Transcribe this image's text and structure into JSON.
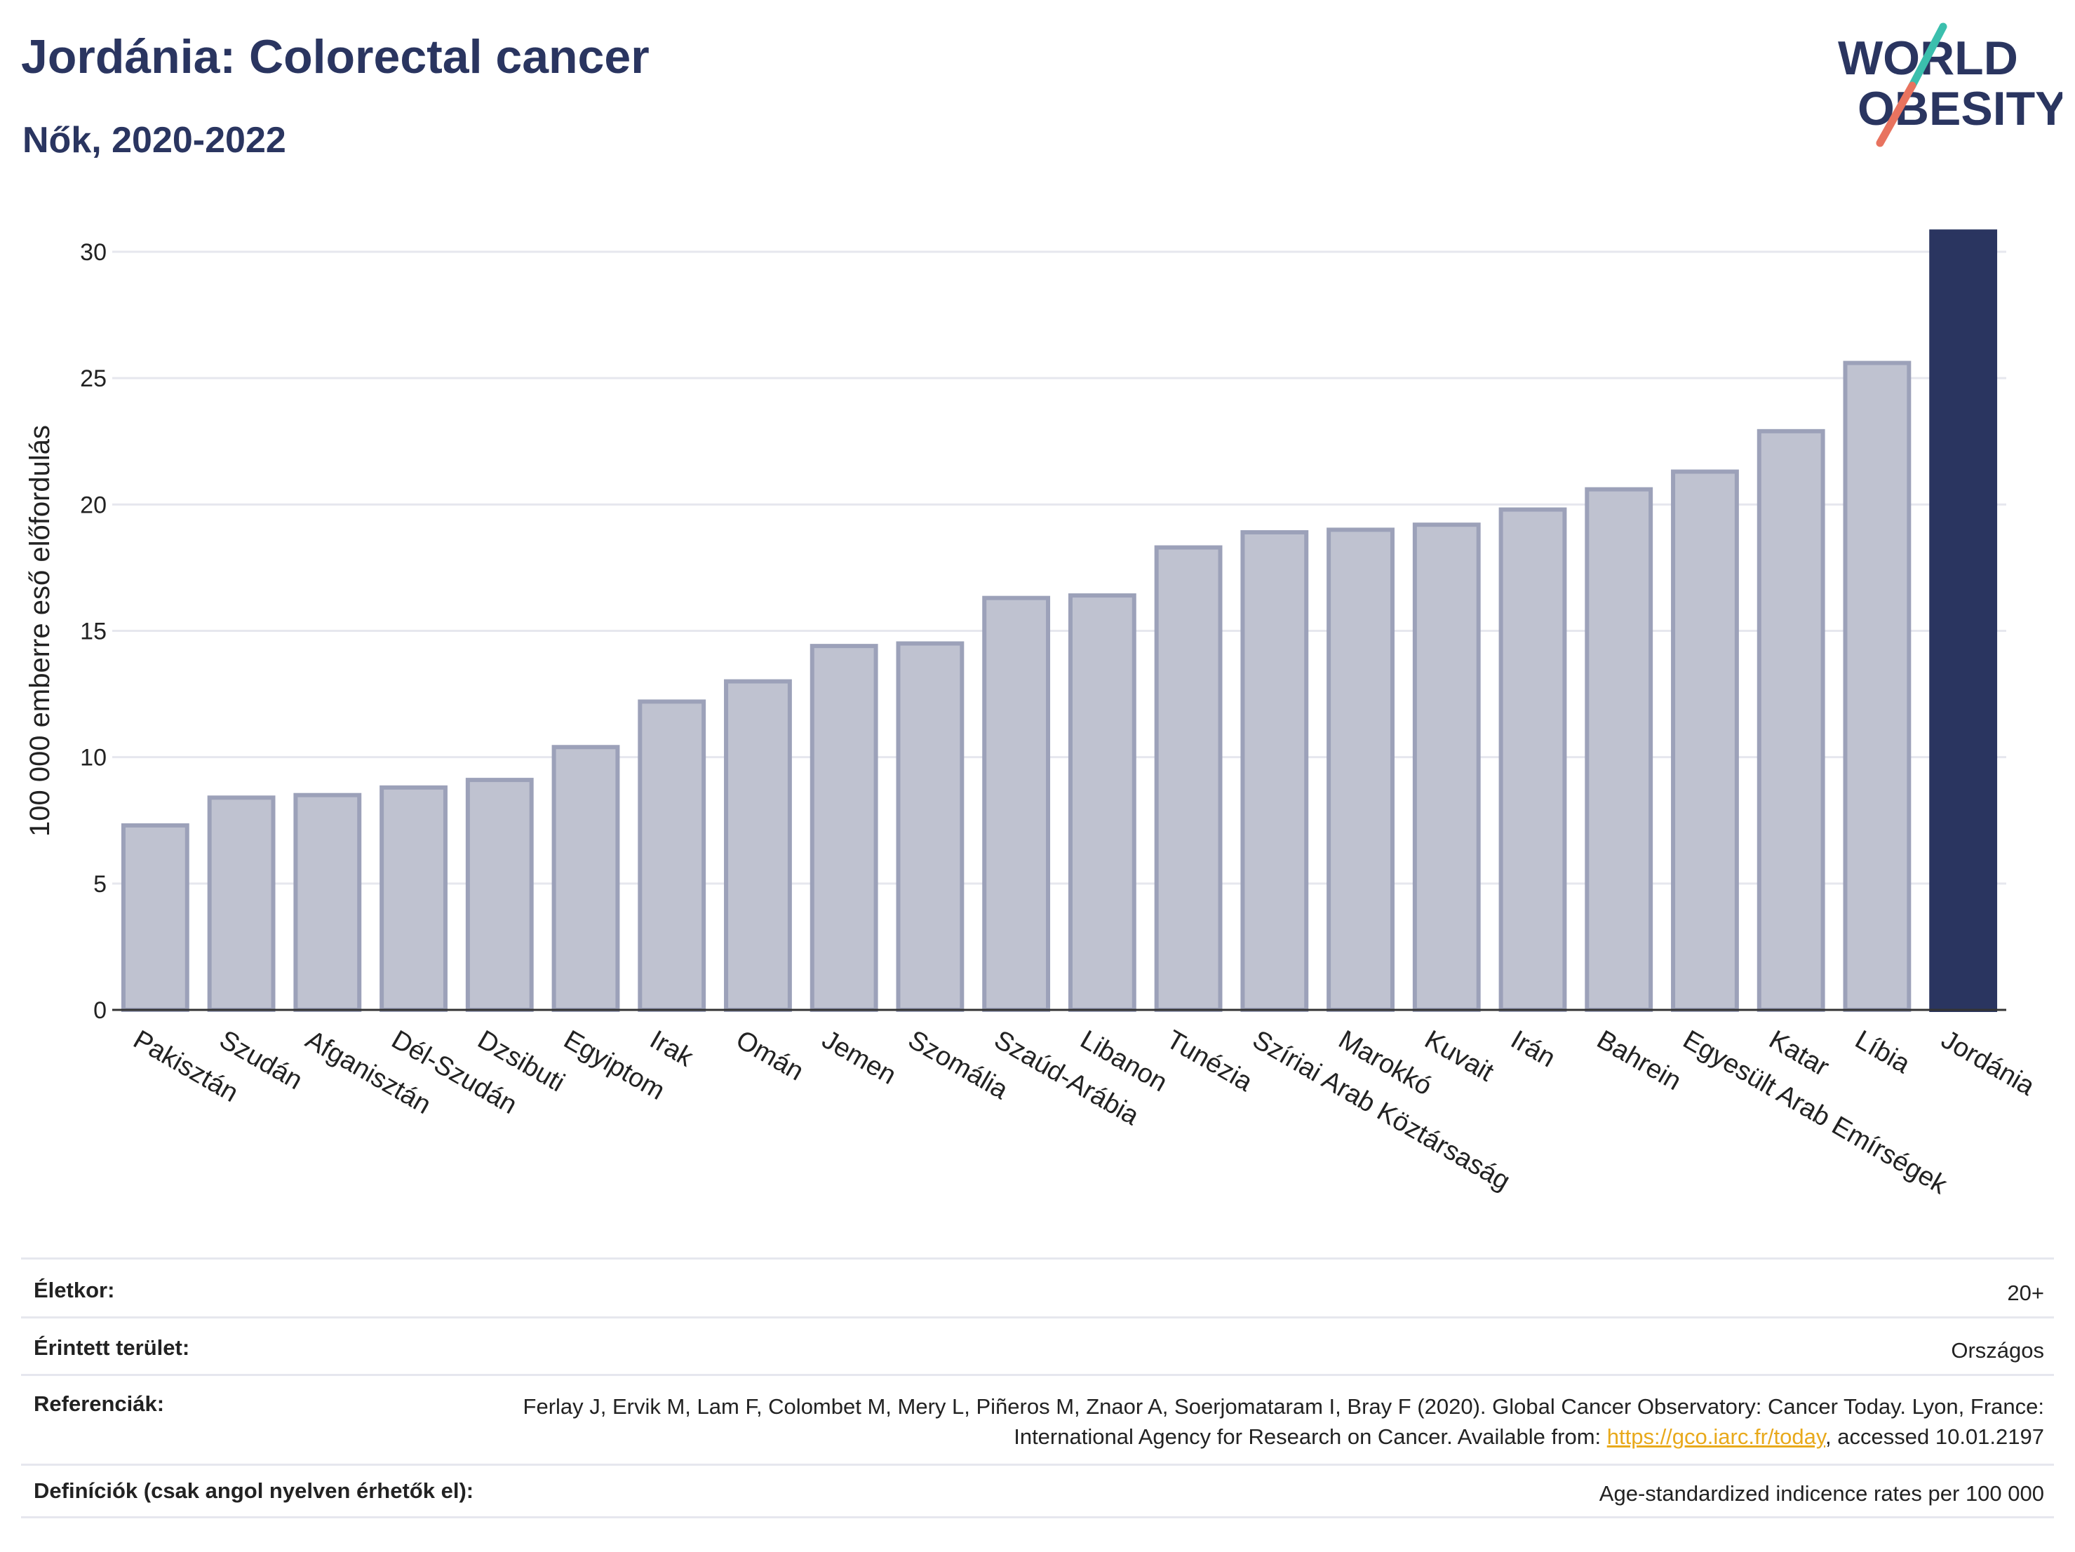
{
  "header": {
    "title": "Jordánia: Colorectal cancer",
    "subtitle": "Nők, 2020-2022"
  },
  "logo": {
    "line1": "WORLD",
    "line2": "OBESITY",
    "text_color": "#2a3560",
    "stripe_colors": [
      "#3bbfad",
      "#e8735f"
    ]
  },
  "chart_data": {
    "type": "bar",
    "ylabel": "100 000 emberre eső előfordulás",
    "ylim": [
      0,
      31
    ],
    "yticks": [
      0,
      5,
      10,
      15,
      20,
      25,
      30
    ],
    "grid": true,
    "categories": [
      "Pakisztán",
      "Szudán",
      "Afganisztán",
      "Dél-Szudán",
      "Dzsibuti",
      "Egyiptom",
      "Irak",
      "Omán",
      "Jemen",
      "Szomália",
      "Szaúd-Arábia",
      "Libanon",
      "Tunézia",
      "Szíriai Arab Köztársaság",
      "Marokkó",
      "Kuvait",
      "Irán",
      "Bahrein",
      "Egyesült Arab Emírségek",
      "Katar",
      "Líbia",
      "Jordánia"
    ],
    "values": [
      7.3,
      8.4,
      8.5,
      8.8,
      9.1,
      10.4,
      12.2,
      13.0,
      14.4,
      14.5,
      16.3,
      16.4,
      18.3,
      18.9,
      19.0,
      19.2,
      19.8,
      20.6,
      21.3,
      22.9,
      25.6,
      30.8
    ],
    "highlight_category": "Jordánia",
    "bar_color": "#bfc2d0",
    "bar_border_color": "#9ca1b9",
    "highlight_color": "#2a3560"
  },
  "meta": {
    "age_label": "Életkor:",
    "age_value": "20+",
    "area_label": "Érintett terület:",
    "area_value": "Országos",
    "refs_label": "Referenciák:",
    "refs_text_1": "Ferlay J, Ervik M, Lam F, Colombet M, Mery L, Piñeros M, Znaor A, Soerjomataram I, Bray F (2020). Global Cancer Observatory: Cancer Today. Lyon, France: International Agency for Research on Cancer. Available from: ",
    "refs_link": "https://gco.iarc.fr/today",
    "refs_text_2": ", accessed 10.01.2197",
    "defs_label": "Definíciók (csak angol nyelven érhetők el):",
    "defs_value": "Age-standardized indicence rates per 100 000"
  }
}
